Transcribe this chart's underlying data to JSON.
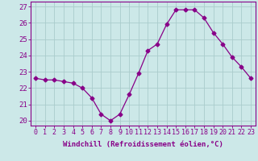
{
  "x": [
    0,
    1,
    2,
    3,
    4,
    5,
    6,
    7,
    8,
    9,
    10,
    11,
    12,
    13,
    14,
    15,
    16,
    17,
    18,
    19,
    20,
    21,
    22,
    23
  ],
  "y": [
    22.6,
    22.5,
    22.5,
    22.4,
    22.3,
    22.0,
    21.4,
    20.4,
    20.0,
    20.4,
    21.6,
    22.9,
    24.3,
    24.7,
    25.9,
    26.8,
    26.8,
    26.8,
    26.3,
    25.4,
    24.7,
    23.9,
    23.3,
    22.6
  ],
  "line_color": "#880088",
  "marker": "D",
  "marker_size": 2.5,
  "bg_color": "#cce8e8",
  "grid_color": "#aacccc",
  "xlabel": "Windchill (Refroidissement éolien,°C)",
  "ylabel_ticks": [
    20,
    21,
    22,
    23,
    24,
    25,
    26,
    27
  ],
  "xlim": [
    -0.5,
    23.5
  ],
  "ylim": [
    19.7,
    27.3
  ],
  "xtick_labels": [
    "0",
    "1",
    "2",
    "3",
    "4",
    "5",
    "6",
    "7",
    "8",
    "9",
    "10",
    "11",
    "12",
    "13",
    "14",
    "15",
    "16",
    "17",
    "18",
    "19",
    "20",
    "21",
    "22",
    "23"
  ],
  "spine_color": "#880088",
  "axis_label_fontsize": 6.5,
  "tick_fontsize": 6,
  "xlabel_fontweight": "bold"
}
